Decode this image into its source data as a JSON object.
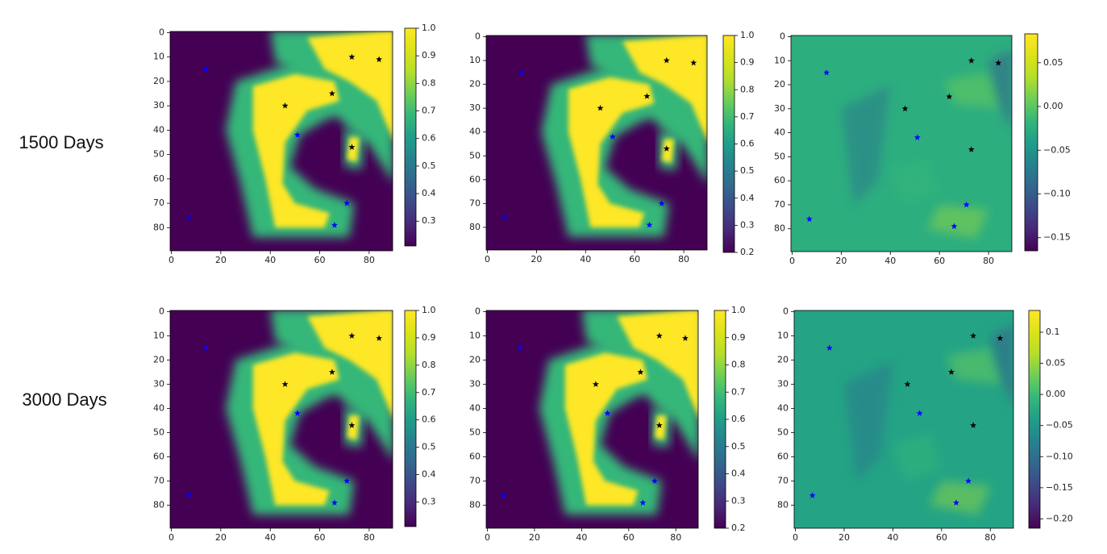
{
  "row_labels": [
    "1500 Days",
    "3000 Days"
  ],
  "chart_data": [
    {
      "type": "heatmap",
      "colormap": "viridis",
      "field": "state",
      "xlim": [
        -0.5,
        89.5
      ],
      "ylim": [
        89.5,
        -0.5
      ],
      "xticks": [
        0,
        20,
        40,
        60,
        80
      ],
      "yticks": [
        0,
        10,
        20,
        30,
        40,
        50,
        60,
        70,
        80
      ],
      "clim": [
        0.21,
        1.0
      ],
      "cticks": [
        0.3,
        0.4,
        0.5,
        0.6,
        0.7,
        0.8,
        0.9,
        {
          "value": 1,
          "label": "1.0"
        }
      ],
      "series": [
        {
          "color": "#000000",
          "x": [
            73,
            84,
            65,
            46,
            73
          ],
          "y": [
            10,
            11,
            25,
            30,
            47
          ]
        },
        {
          "color": "#0000ff",
          "x": [
            14,
            51,
            71,
            7,
            66
          ],
          "y": [
            15,
            42,
            70,
            76,
            79
          ]
        }
      ]
    },
    {
      "type": "heatmap",
      "colormap": "viridis",
      "field": "state",
      "xlim": [
        -0.5,
        89.5
      ],
      "ylim": [
        89.5,
        -0.5
      ],
      "xticks": [
        0,
        20,
        40,
        60,
        80
      ],
      "yticks": [
        0,
        10,
        20,
        30,
        40,
        50,
        60,
        70,
        80
      ],
      "clim": [
        0.2,
        1.0
      ],
      "cticks": [
        0.2,
        0.3,
        0.4,
        0.5,
        0.6,
        0.7,
        0.8,
        0.9,
        {
          "value": 1,
          "label": "1.0"
        }
      ],
      "series": [
        {
          "color": "#000000",
          "x": [
            73,
            84,
            65,
            46,
            73
          ],
          "y": [
            10,
            11,
            25,
            30,
            47
          ]
        },
        {
          "color": "#0000ff",
          "x": [
            14,
            51,
            71,
            7,
            66
          ],
          "y": [
            15,
            42,
            70,
            76,
            79
          ]
        }
      ]
    },
    {
      "type": "heatmap",
      "colormap": "viridis",
      "field": "difference",
      "xlim": [
        -0.5,
        89.5
      ],
      "ylim": [
        89.5,
        -0.5
      ],
      "xticks": [
        0,
        20,
        40,
        60,
        80
      ],
      "yticks": [
        0,
        10,
        20,
        30,
        40,
        50,
        60,
        70,
        80
      ],
      "clim": [
        -0.165,
        0.083
      ],
      "cticks": [
        0.05,
        {
          "value": 0,
          "label": "0.00"
        },
        {
          "value": -0.05,
          "label": "−0.05"
        },
        {
          "value": -0.1,
          "label": "−0.10"
        },
        {
          "value": -0.15,
          "label": "−0.15"
        }
      ],
      "series": [
        {
          "color": "#000000",
          "x": [
            73,
            84,
            64,
            46,
            73
          ],
          "y": [
            10,
            11,
            25,
            30,
            47
          ]
        },
        {
          "color": "#0000ff",
          "x": [
            14,
            51,
            71,
            7,
            66
          ],
          "y": [
            15,
            42,
            70,
            76,
            79
          ]
        }
      ]
    },
    {
      "type": "heatmap",
      "colormap": "viridis",
      "field": "state",
      "xlim": [
        -0.5,
        89.5
      ],
      "ylim": [
        89.5,
        -0.5
      ],
      "xticks": [
        0,
        20,
        40,
        60,
        80
      ],
      "yticks": [
        0,
        10,
        20,
        30,
        40,
        50,
        60,
        70,
        80
      ],
      "clim": [
        0.21,
        1.0
      ],
      "cticks": [
        0.3,
        0.4,
        0.5,
        0.6,
        0.7,
        0.8,
        0.9,
        {
          "value": 1,
          "label": "1.0"
        }
      ],
      "series": [
        {
          "color": "#000000",
          "x": [
            73,
            84,
            65,
            46,
            73
          ],
          "y": [
            10,
            11,
            25,
            30,
            47
          ]
        },
        {
          "color": "#0000ff",
          "x": [
            14,
            51,
            71,
            7,
            66
          ],
          "y": [
            15,
            42,
            70,
            76,
            79
          ]
        }
      ]
    },
    {
      "type": "heatmap",
      "colormap": "viridis",
      "field": "state",
      "xlim": [
        -0.5,
        89.5
      ],
      "ylim": [
        89.5,
        -0.5
      ],
      "xticks": [
        0,
        20,
        40,
        60,
        80
      ],
      "yticks": [
        0,
        10,
        20,
        30,
        40,
        50,
        60,
        70,
        80
      ],
      "clim": [
        0.2,
        1.0
      ],
      "cticks": [
        0.2,
        0.3,
        0.4,
        0.5,
        0.6,
        0.7,
        0.8,
        0.9,
        {
          "value": 1,
          "label": "1.0"
        }
      ],
      "series": [
        {
          "color": "#000000",
          "x": [
            73,
            84,
            65,
            46,
            73
          ],
          "y": [
            10,
            11,
            25,
            30,
            47
          ]
        },
        {
          "color": "#0000ff",
          "x": [
            14,
            51,
            71,
            7,
            66
          ],
          "y": [
            15,
            42,
            70,
            76,
            79
          ]
        }
      ]
    },
    {
      "type": "heatmap",
      "colormap": "viridis",
      "field": "difference",
      "xlim": [
        -0.5,
        89.5
      ],
      "ylim": [
        89.5,
        -0.5
      ],
      "xticks": [
        0,
        20,
        40,
        60,
        80
      ],
      "yticks": [
        0,
        10,
        20,
        30,
        40,
        50,
        60,
        70,
        80
      ],
      "clim": [
        -0.215,
        0.135
      ],
      "cticks": [
        0.1,
        0.05,
        {
          "value": 0,
          "label": "0.00"
        },
        {
          "value": -0.05,
          "label": "−0.05"
        },
        {
          "value": -0.1,
          "label": "−0.10"
        },
        {
          "value": -0.15,
          "label": "−0.15"
        },
        {
          "value": -0.2,
          "label": "−0.20"
        }
      ],
      "series": [
        {
          "color": "#000000",
          "x": [
            73,
            84,
            64,
            46,
            73
          ],
          "y": [
            10,
            11,
            25,
            30,
            47
          ]
        },
        {
          "color": "#0000ff",
          "x": [
            14,
            51,
            71,
            7,
            66
          ],
          "y": [
            15,
            42,
            70,
            76,
            79
          ]
        }
      ]
    }
  ]
}
